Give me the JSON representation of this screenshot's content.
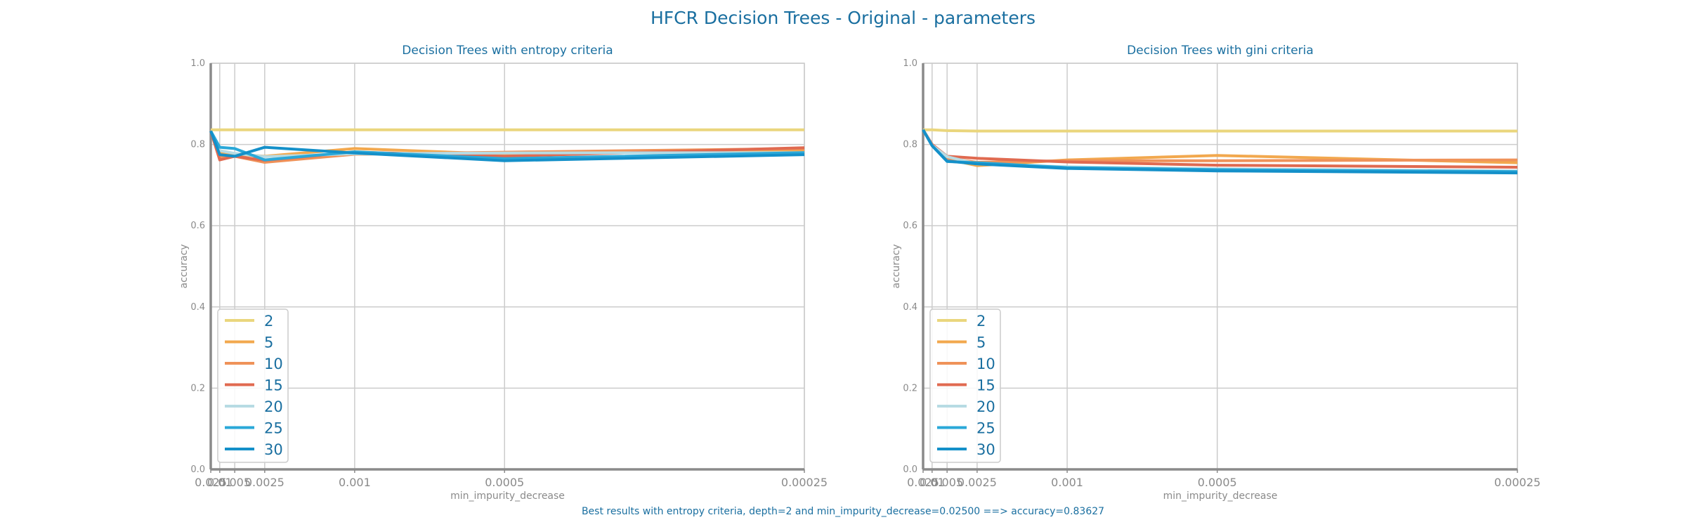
{
  "figure": {
    "title": "HFCR Decision Trees - Original - parameters",
    "footer": "Best results with entropy criteria, depth=2 and min_impurity_decrease=0.02500 ==> accuracy=0.83627"
  },
  "colors": {
    "text": "#1a6fa0",
    "grid": "#cccccc",
    "axis": "#8a8a8a",
    "series": [
      "#ead67d",
      "#f2a84e",
      "#ef9259",
      "#e06a50",
      "#b7dbe3",
      "#2aa8d8",
      "#1490c9"
    ]
  },
  "chart_data": [
    {
      "type": "line",
      "title": "Decision Trees with entropy criteria",
      "xlabel": "min_impurity_decrease",
      "ylabel": "accuracy",
      "x_scale": "reciprocal",
      "x": [
        0.025,
        0.01,
        0.005,
        0.0025,
        0.001,
        0.0005,
        0.00025
      ],
      "x_tick_labels": [
        "0.025",
        "0.01",
        "0.005",
        "0.0025",
        "0.001",
        "0.0005",
        "0.00025"
      ],
      "ylim": [
        0,
        1
      ],
      "y_ticks": [
        "0.0",
        "0.2",
        "0.4",
        "0.6",
        "0.8",
        "1.0"
      ],
      "grid": true,
      "legend": "lower-left",
      "series": [
        {
          "name": "2",
          "values": [
            0.836,
            0.836,
            0.836,
            0.836,
            0.836,
            0.836,
            0.836
          ]
        },
        {
          "name": "5",
          "values": [
            0.833,
            0.78,
            0.776,
            0.771,
            0.79,
            0.776,
            0.786
          ]
        },
        {
          "name": "10",
          "values": [
            0.833,
            0.768,
            0.771,
            0.756,
            0.776,
            0.781,
            0.79
          ]
        },
        {
          "name": "15",
          "values": [
            0.833,
            0.762,
            0.771,
            0.761,
            0.781,
            0.771,
            0.792
          ]
        },
        {
          "name": "20",
          "values": [
            0.833,
            0.785,
            0.778,
            0.77,
            0.777,
            0.779,
            0.78
          ]
        },
        {
          "name": "25",
          "values": [
            0.833,
            0.793,
            0.79,
            0.762,
            0.782,
            0.765,
            0.78
          ]
        },
        {
          "name": "30",
          "values": [
            0.833,
            0.775,
            0.771,
            0.793,
            0.779,
            0.76,
            0.775
          ]
        }
      ]
    },
    {
      "type": "line",
      "title": "Decision Trees with gini criteria",
      "xlabel": "min_impurity_decrease",
      "ylabel": "accuracy",
      "x_scale": "reciprocal",
      "x": [
        0.025,
        0.01,
        0.005,
        0.0025,
        0.001,
        0.0005,
        0.00025
      ],
      "x_tick_labels": [
        "0.025",
        "0.01",
        "0.005",
        "0.0025",
        "0.001",
        "0.0005",
        "0.00025"
      ],
      "ylim": [
        0,
        1
      ],
      "y_ticks": [
        "0.0",
        "0.2",
        "0.4",
        "0.6",
        "0.8",
        "1.0"
      ],
      "grid": true,
      "legend": "lower-left",
      "series": [
        {
          "name": "2",
          "values": [
            0.836,
            0.836,
            0.834,
            0.833,
            0.833,
            0.833,
            0.833
          ]
        },
        {
          "name": "5",
          "values": [
            0.836,
            0.8,
            0.764,
            0.748,
            0.762,
            0.773,
            0.755
          ]
        },
        {
          "name": "10",
          "values": [
            0.836,
            0.8,
            0.766,
            0.756,
            0.76,
            0.76,
            0.762
          ]
        },
        {
          "name": "15",
          "values": [
            0.836,
            0.8,
            0.771,
            0.766,
            0.757,
            0.749,
            0.744
          ]
        },
        {
          "name": "20",
          "values": [
            0.836,
            0.798,
            0.77,
            0.752,
            0.745,
            0.74,
            0.735
          ]
        },
        {
          "name": "25",
          "values": [
            0.836,
            0.797,
            0.758,
            0.755,
            0.743,
            0.738,
            0.733
          ]
        },
        {
          "name": "30",
          "values": [
            0.836,
            0.797,
            0.759,
            0.752,
            0.741,
            0.735,
            0.73
          ]
        }
      ]
    }
  ]
}
